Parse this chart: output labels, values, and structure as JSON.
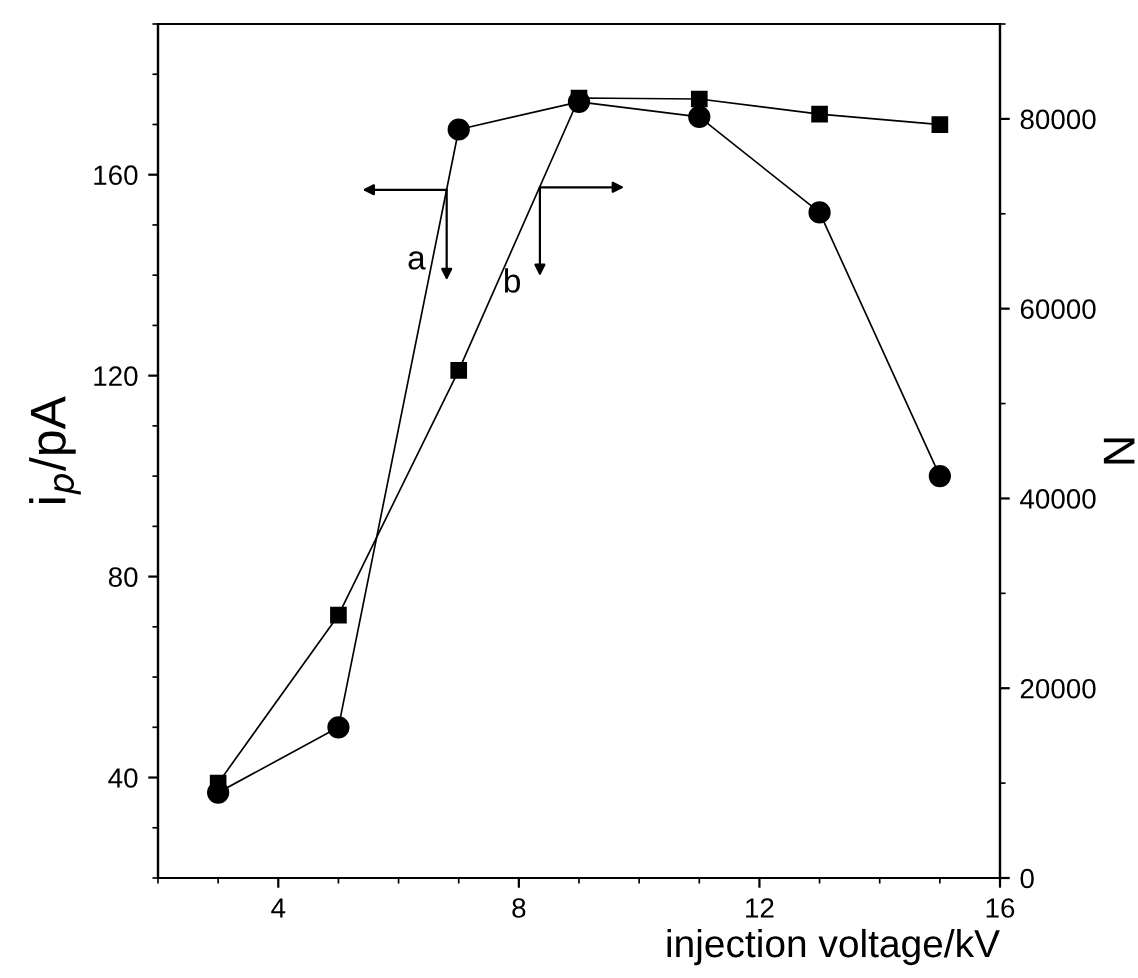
{
  "chart_data": {
    "type": "line",
    "xlabel": "injection voltage/kV",
    "ylabel": "i$_{p}$/pA",
    "y2label": "N",
    "x": [
      3,
      5,
      7,
      9,
      11,
      13,
      15
    ],
    "series": [
      {
        "color": "#000000",
        "marker": "circle",
        "values": [
          37,
          50,
          169,
          174.5,
          171.5,
          152.5,
          100
        ]
      },
      {
        "color": "#000000",
        "marker": "square",
        "axis": "y2",
        "values": [
          10000,
          27700,
          53500,
          82200,
          82100,
          80500,
          79400
        ]
      }
    ],
    "xlim": [
      2,
      16
    ],
    "xticks": [
      4,
      8,
      12,
      16
    ],
    "ylim": [
      20,
      190
    ],
    "yticks": [
      40,
      80,
      120,
      160
    ],
    "y2lim": [
      0,
      90000
    ],
    "y2ticks": [
      0,
      20000,
      40000,
      60000,
      80000
    ],
    "annotations": [
      {
        "text": "a",
        "x": 6.8,
        "y": 157
      },
      {
        "text": "b",
        "x": 8.35,
        "y": 157.5
      }
    ],
    "grid": false,
    "legend": false,
    "line_style": "solid"
  }
}
